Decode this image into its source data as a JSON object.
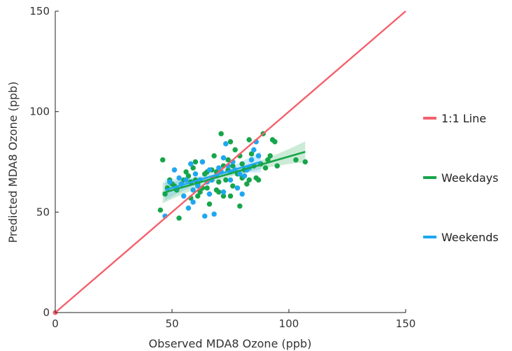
{
  "chart_data": {
    "type": "scatter",
    "xlabel": "Observed MDA8 Ozone (ppb)",
    "ylabel": "Predicted MDA8 Ozone (ppb)",
    "xlim": [
      0,
      150
    ],
    "ylim": [
      0,
      150
    ],
    "xticks": [
      "0",
      "50",
      "100",
      "150"
    ],
    "yticks": [
      "0",
      "50",
      "100",
      "150"
    ],
    "grid": false,
    "legend_position": "right",
    "colors": {
      "one_to_one": "#f4606c",
      "weekdays": "#16a54a",
      "weekends": "#1ea7f0"
    },
    "legend": [
      {
        "key": "one_to_one",
        "label": "1:1 Line"
      },
      {
        "key": "weekdays",
        "label": "Weekdays"
      },
      {
        "key": "weekends",
        "label": "Weekends"
      }
    ],
    "one_to_one_line": {
      "x": [
        0,
        150
      ],
      "y": [
        0,
        150
      ]
    },
    "series": [
      {
        "name": "Weekdays",
        "points": [
          [
            45,
            51
          ],
          [
            46,
            76
          ],
          [
            47,
            59
          ],
          [
            48,
            62
          ],
          [
            49,
            66
          ],
          [
            50,
            64
          ],
          [
            51,
            63
          ],
          [
            52,
            61
          ],
          [
            53,
            47
          ],
          [
            54,
            64
          ],
          [
            55,
            66
          ],
          [
            56,
            70
          ],
          [
            57,
            68
          ],
          [
            58,
            65
          ],
          [
            59,
            72
          ],
          [
            60,
            75
          ],
          [
            60,
            66
          ],
          [
            61,
            64
          ],
          [
            62,
            60
          ],
          [
            63,
            62
          ],
          [
            64,
            69
          ],
          [
            65,
            70
          ],
          [
            65,
            62
          ],
          [
            66,
            54
          ],
          [
            67,
            66
          ],
          [
            68,
            78
          ],
          [
            69,
            61
          ],
          [
            70,
            65
          ],
          [
            70,
            60
          ],
          [
            71,
            89
          ],
          [
            72,
            73
          ],
          [
            73,
            66
          ],
          [
            74,
            76
          ],
          [
            75,
            85
          ],
          [
            75,
            58
          ],
          [
            76,
            73
          ],
          [
            77,
            81
          ],
          [
            78,
            69
          ],
          [
            79,
            53
          ],
          [
            79,
            78
          ],
          [
            80,
            74
          ],
          [
            81,
            71
          ],
          [
            82,
            64
          ],
          [
            83,
            86
          ],
          [
            84,
            79
          ],
          [
            85,
            73
          ],
          [
            86,
            67
          ],
          [
            87,
            66
          ],
          [
            88,
            74
          ],
          [
            89,
            89
          ],
          [
            90,
            72
          ],
          [
            91,
            76
          ],
          [
            92,
            78
          ],
          [
            93,
            86
          ],
          [
            94,
            85
          ],
          [
            95,
            73
          ],
          [
            103,
            76
          ],
          [
            107,
            75
          ],
          [
            72,
            58
          ],
          [
            63,
            75
          ],
          [
            58,
            57
          ],
          [
            69,
            70
          ],
          [
            76,
            63
          ],
          [
            80,
            67
          ],
          [
            67,
            71
          ],
          [
            61,
            58
          ],
          [
            74,
            71
          ],
          [
            83,
            66
          ]
        ],
        "fit": {
          "x": [
            46,
            107
          ],
          "y": [
            59.5,
            80
          ]
        }
      },
      {
        "name": "Weekends",
        "points": [
          [
            47,
            48
          ],
          [
            49,
            65
          ],
          [
            51,
            71
          ],
          [
            52,
            62
          ],
          [
            53,
            67
          ],
          [
            54,
            64
          ],
          [
            55,
            58
          ],
          [
            56,
            66
          ],
          [
            57,
            52
          ],
          [
            58,
            74
          ],
          [
            59,
            61
          ],
          [
            60,
            69
          ],
          [
            61,
            63
          ],
          [
            62,
            66
          ],
          [
            63,
            75
          ],
          [
            64,
            48
          ],
          [
            65,
            65
          ],
          [
            66,
            59
          ],
          [
            67,
            66
          ],
          [
            68,
            49
          ],
          [
            69,
            68
          ],
          [
            70,
            72
          ],
          [
            71,
            70
          ],
          [
            72,
            77
          ],
          [
            73,
            84
          ],
          [
            74,
            73
          ],
          [
            75,
            66
          ],
          [
            76,
            75
          ],
          [
            77,
            71
          ],
          [
            78,
            62
          ],
          [
            79,
            69
          ],
          [
            80,
            59
          ],
          [
            81,
            68
          ],
          [
            82,
            71
          ],
          [
            83,
            72
          ],
          [
            84,
            76
          ],
          [
            85,
            81
          ],
          [
            86,
            85
          ],
          [
            87,
            78
          ],
          [
            72,
            60
          ],
          [
            66,
            71
          ],
          [
            59,
            55
          ],
          [
            75,
            70
          ]
        ],
        "fit": {
          "x": [
            47,
            88
          ],
          "y": [
            61,
            75
          ]
        }
      }
    ]
  }
}
